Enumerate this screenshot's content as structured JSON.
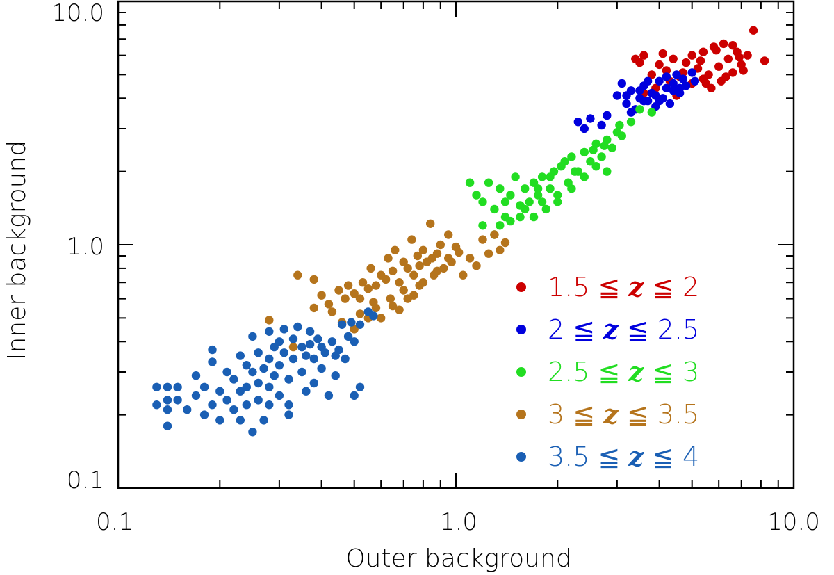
{
  "chart_data": {
    "type": "scatter",
    "xlabel": "Outer background",
    "ylabel": "Inner background",
    "x_scale": "log",
    "y_scale": "log",
    "xlim": [
      0.1,
      10.0
    ],
    "ylim": [
      0.1,
      10.0
    ],
    "x_ticks": [
      "0.1",
      "1.0",
      "10.0"
    ],
    "y_ticks": [
      "0.1",
      "1.0",
      "10.0"
    ],
    "legend_position": "lower-right",
    "series": [
      {
        "name": "1.5 ≦ z ≦ 2",
        "color": "#cc0000",
        "points": [
          [
            3.4,
            5.8
          ],
          [
            3.6,
            6.0
          ],
          [
            3.8,
            5.0
          ],
          [
            4.0,
            5.5
          ],
          [
            4.2,
            5.2
          ],
          [
            4.4,
            5.8
          ],
          [
            4.6,
            4.9
          ],
          [
            4.8,
            5.6
          ],
          [
            5.0,
            6.0
          ],
          [
            5.2,
            5.3
          ],
          [
            5.4,
            6.2
          ],
          [
            5.6,
            5.0
          ],
          [
            5.8,
            6.5
          ],
          [
            6.0,
            5.4
          ],
          [
            6.2,
            6.7
          ],
          [
            6.4,
            5.8
          ],
          [
            6.6,
            5.1
          ],
          [
            6.8,
            6.2
          ],
          [
            7.0,
            5.5
          ],
          [
            7.3,
            6.0
          ],
          [
            7.6,
            7.6
          ],
          [
            8.2,
            5.7
          ],
          [
            5.0,
            4.6
          ],
          [
            5.4,
            4.8
          ],
          [
            5.7,
            4.4
          ],
          [
            6.1,
            4.7
          ],
          [
            4.5,
            4.1
          ],
          [
            3.9,
            4.4
          ],
          [
            3.6,
            4.2
          ],
          [
            4.1,
            6.1
          ],
          [
            4.7,
            5.1
          ],
          [
            5.3,
            5.7
          ],
          [
            5.9,
            6.3
          ],
          [
            6.3,
            4.9
          ],
          [
            6.9,
            5.9
          ],
          [
            7.1,
            5.2
          ],
          [
            4.3,
            4.7
          ],
          [
            3.5,
            5.6
          ],
          [
            5.5,
            4.6
          ],
          [
            6.6,
            6.6
          ]
        ]
      },
      {
        "name": "2 ≦ z ≦ 2.5",
        "color": "#0000dd",
        "points": [
          [
            2.3,
            3.2
          ],
          [
            2.5,
            3.3
          ],
          [
            2.7,
            3.1
          ],
          [
            2.8,
            3.4
          ],
          [
            3.0,
            4.1
          ],
          [
            3.1,
            4.6
          ],
          [
            3.2,
            3.8
          ],
          [
            3.3,
            4.3
          ],
          [
            3.4,
            3.6
          ],
          [
            3.5,
            4.0
          ],
          [
            3.6,
            4.5
          ],
          [
            3.7,
            3.9
          ],
          [
            3.8,
            4.2
          ],
          [
            3.9,
            3.7
          ],
          [
            4.0,
            4.7
          ],
          [
            4.1,
            4.0
          ],
          [
            4.2,
            4.4
          ],
          [
            4.3,
            3.8
          ],
          [
            4.4,
            4.6
          ],
          [
            4.5,
            5.0
          ],
          [
            4.6,
            4.2
          ],
          [
            4.7,
            4.8
          ],
          [
            4.8,
            4.5
          ],
          [
            5.0,
            5.1
          ],
          [
            5.1,
            4.7
          ],
          [
            3.3,
            3.5
          ],
          [
            3.6,
            3.9
          ],
          [
            3.9,
            4.1
          ],
          [
            4.2,
            4.9
          ],
          [
            4.6,
            4.4
          ],
          [
            3.5,
            4.3
          ],
          [
            3.7,
            4.7
          ],
          [
            4.0,
            3.9
          ],
          [
            4.4,
            4.3
          ],
          [
            2.4,
            3.0
          ],
          [
            3.2,
            4.1
          ]
        ]
      },
      {
        "name": "2.5 ≦ z ≦ 3",
        "color": "#22dd22",
        "points": [
          [
            1.1,
            1.8
          ],
          [
            1.15,
            1.6
          ],
          [
            1.2,
            1.5
          ],
          [
            1.25,
            1.8
          ],
          [
            1.3,
            1.4
          ],
          [
            1.35,
            1.7
          ],
          [
            1.4,
            1.5
          ],
          [
            1.45,
            1.6
          ],
          [
            1.5,
            1.9
          ],
          [
            1.55,
            1.3
          ],
          [
            1.6,
            1.7
          ],
          [
            1.65,
            1.5
          ],
          [
            1.7,
            1.8
          ],
          [
            1.75,
            1.6
          ],
          [
            1.8,
            1.9
          ],
          [
            1.85,
            1.4
          ],
          [
            1.9,
            1.7
          ],
          [
            1.95,
            2.0
          ],
          [
            2.0,
            1.5
          ],
          [
            2.1,
            2.2
          ],
          [
            2.15,
            1.8
          ],
          [
            2.2,
            2.3
          ],
          [
            2.3,
            2.0
          ],
          [
            2.4,
            2.4
          ],
          [
            2.5,
            2.2
          ],
          [
            2.6,
            2.6
          ],
          [
            2.7,
            2.3
          ],
          [
            2.8,
            2.7
          ],
          [
            2.9,
            2.5
          ],
          [
            3.0,
            2.9
          ],
          [
            3.1,
            2.8
          ],
          [
            3.3,
            3.2
          ],
          [
            3.5,
            3.6
          ],
          [
            3.8,
            3.5
          ],
          [
            1.2,
            1.2
          ],
          [
            1.3,
            1.1
          ],
          [
            1.35,
            1.2
          ],
          [
            1.4,
            1.3
          ],
          [
            1.6,
            1.4
          ],
          [
            1.7,
            1.3
          ],
          [
            1.8,
            1.5
          ],
          [
            2.0,
            1.6
          ],
          [
            2.2,
            1.7
          ],
          [
            2.4,
            1.9
          ],
          [
            2.6,
            2.1
          ],
          [
            2.8,
            2.0
          ],
          [
            1.45,
            1.25
          ],
          [
            1.55,
            1.45
          ],
          [
            1.75,
            1.7
          ],
          [
            1.9,
            1.9
          ],
          [
            2.05,
            2.1
          ],
          [
            2.25,
            2.0
          ],
          [
            2.55,
            2.45
          ],
          [
            2.75,
            2.55
          ],
          [
            3.05,
            3.1
          ]
        ]
      },
      {
        "name": "3 ≦ z ≦ 3.5",
        "color": "#b5741c",
        "points": [
          [
            0.28,
            0.49
          ],
          [
            0.33,
            0.38
          ],
          [
            0.34,
            0.75
          ],
          [
            0.38,
            0.72
          ],
          [
            0.38,
            0.55
          ],
          [
            0.4,
            0.62
          ],
          [
            0.42,
            0.57
          ],
          [
            0.45,
            0.65
          ],
          [
            0.47,
            0.6
          ],
          [
            0.48,
            0.68
          ],
          [
            0.5,
            0.63
          ],
          [
            0.52,
            0.6
          ],
          [
            0.53,
            0.7
          ],
          [
            0.55,
            0.66
          ],
          [
            0.56,
            0.8
          ],
          [
            0.57,
            0.58
          ],
          [
            0.58,
            0.68
          ],
          [
            0.6,
            0.75
          ],
          [
            0.62,
            0.72
          ],
          [
            0.63,
            0.88
          ],
          [
            0.64,
            0.6
          ],
          [
            0.65,
            0.78
          ],
          [
            0.66,
            0.95
          ],
          [
            0.68,
            0.7
          ],
          [
            0.7,
            0.85
          ],
          [
            0.72,
            0.8
          ],
          [
            0.74,
            1.05
          ],
          [
            0.75,
            0.75
          ],
          [
            0.77,
            0.9
          ],
          [
            0.78,
            0.68
          ],
          [
            0.8,
            0.95
          ],
          [
            0.82,
            0.85
          ],
          [
            0.84,
            1.22
          ],
          [
            0.85,
            0.88
          ],
          [
            0.88,
            0.92
          ],
          [
            0.9,
            1.0
          ],
          [
            0.92,
            0.8
          ],
          [
            0.95,
            1.1
          ],
          [
            0.97,
            0.85
          ],
          [
            1.0,
            0.98
          ],
          [
            1.05,
            0.75
          ],
          [
            1.1,
            0.88
          ],
          [
            1.15,
            0.82
          ],
          [
            1.2,
            1.05
          ],
          [
            1.25,
            0.92
          ],
          [
            1.3,
            1.1
          ],
          [
            0.5,
            0.45
          ],
          [
            0.52,
            0.52
          ],
          [
            0.58,
            0.55
          ],
          [
            0.6,
            0.5
          ],
          [
            0.65,
            0.56
          ],
          [
            0.68,
            0.54
          ],
          [
            0.72,
            0.6
          ],
          [
            0.75,
            0.62
          ],
          [
            0.8,
            0.7
          ],
          [
            0.88,
            0.78
          ],
          [
            0.95,
            0.88
          ],
          [
            1.35,
            0.95
          ],
          [
            1.4,
            1.02
          ],
          [
            0.43,
            0.53
          ],
          [
            0.46,
            0.48
          ],
          [
            0.55,
            0.5
          ],
          [
            0.7,
            0.65
          ],
          [
            0.78,
            0.82
          ],
          [
            0.86,
            0.75
          ],
          [
            1.02,
            0.93
          ]
        ]
      },
      {
        "name": "3.5 ≦ z ≦ 4",
        "color": "#1a5fb4",
        "points": [
          [
            0.13,
            0.26
          ],
          [
            0.13,
            0.22
          ],
          [
            0.14,
            0.26
          ],
          [
            0.14,
            0.23
          ],
          [
            0.14,
            0.21
          ],
          [
            0.14,
            0.18
          ],
          [
            0.15,
            0.26
          ],
          [
            0.15,
            0.23
          ],
          [
            0.16,
            0.21
          ],
          [
            0.17,
            0.24
          ],
          [
            0.17,
            0.29
          ],
          [
            0.18,
            0.26
          ],
          [
            0.18,
            0.2
          ],
          [
            0.19,
            0.37
          ],
          [
            0.19,
            0.33
          ],
          [
            0.19,
            0.22
          ],
          [
            0.2,
            0.25
          ],
          [
            0.2,
            0.19
          ],
          [
            0.21,
            0.3
          ],
          [
            0.21,
            0.23
          ],
          [
            0.22,
            0.28
          ],
          [
            0.22,
            0.21
          ],
          [
            0.23,
            0.35
          ],
          [
            0.23,
            0.25
          ],
          [
            0.23,
            0.19
          ],
          [
            0.24,
            0.32
          ],
          [
            0.24,
            0.26
          ],
          [
            0.24,
            0.22
          ],
          [
            0.25,
            0.42
          ],
          [
            0.25,
            0.3
          ],
          [
            0.25,
            0.17
          ],
          [
            0.26,
            0.36
          ],
          [
            0.26,
            0.27
          ],
          [
            0.26,
            0.23
          ],
          [
            0.27,
            0.31
          ],
          [
            0.27,
            0.19
          ],
          [
            0.28,
            0.44
          ],
          [
            0.28,
            0.34
          ],
          [
            0.28,
            0.26
          ],
          [
            0.28,
            0.22
          ],
          [
            0.29,
            0.38
          ],
          [
            0.29,
            0.29
          ],
          [
            0.3,
            0.4
          ],
          [
            0.3,
            0.32
          ],
          [
            0.3,
            0.24
          ],
          [
            0.31,
            0.45
          ],
          [
            0.31,
            0.36
          ],
          [
            0.32,
            0.28
          ],
          [
            0.32,
            0.22
          ],
          [
            0.32,
            0.2
          ],
          [
            0.33,
            0.41
          ],
          [
            0.33,
            0.34
          ],
          [
            0.34,
            0.46
          ],
          [
            0.35,
            0.38
          ],
          [
            0.35,
            0.3
          ],
          [
            0.36,
            0.35
          ],
          [
            0.36,
            0.25
          ],
          [
            0.37,
            0.44
          ],
          [
            0.37,
            0.39
          ],
          [
            0.38,
            0.34
          ],
          [
            0.38,
            0.27
          ],
          [
            0.39,
            0.41
          ],
          [
            0.4,
            0.38
          ],
          [
            0.4,
            0.31
          ],
          [
            0.41,
            0.36
          ],
          [
            0.42,
            0.24
          ],
          [
            0.43,
            0.4
          ],
          [
            0.44,
            0.35
          ],
          [
            0.44,
            0.29
          ],
          [
            0.45,
            0.37
          ],
          [
            0.46,
            0.47
          ],
          [
            0.47,
            0.34
          ],
          [
            0.48,
            0.42
          ],
          [
            0.49,
            0.48
          ],
          [
            0.5,
            0.4
          ],
          [
            0.5,
            0.24
          ],
          [
            0.52,
            0.26
          ],
          [
            0.52,
            0.47
          ],
          [
            0.55,
            0.53
          ],
          [
            0.57,
            0.51
          ]
        ]
      }
    ],
    "legend": [
      {
        "pre": "1.5 ≦ ",
        "z": "z",
        "post": " ≦ 2",
        "color": "#cc0000"
      },
      {
        "pre": "2 ≦ ",
        "z": "z",
        "post": " ≦ 2.5",
        "color": "#0000dd"
      },
      {
        "pre": "2.5 ≦ ",
        "z": "z",
        "post": " ≦ 3",
        "color": "#22dd22"
      },
      {
        "pre": "3 ≦ ",
        "z": "z",
        "post": " ≦ 3.5",
        "color": "#b5741c"
      },
      {
        "pre": "3.5 ≦ ",
        "z": "z",
        "post": " ≦ 4",
        "color": "#1a5fb4"
      }
    ]
  }
}
